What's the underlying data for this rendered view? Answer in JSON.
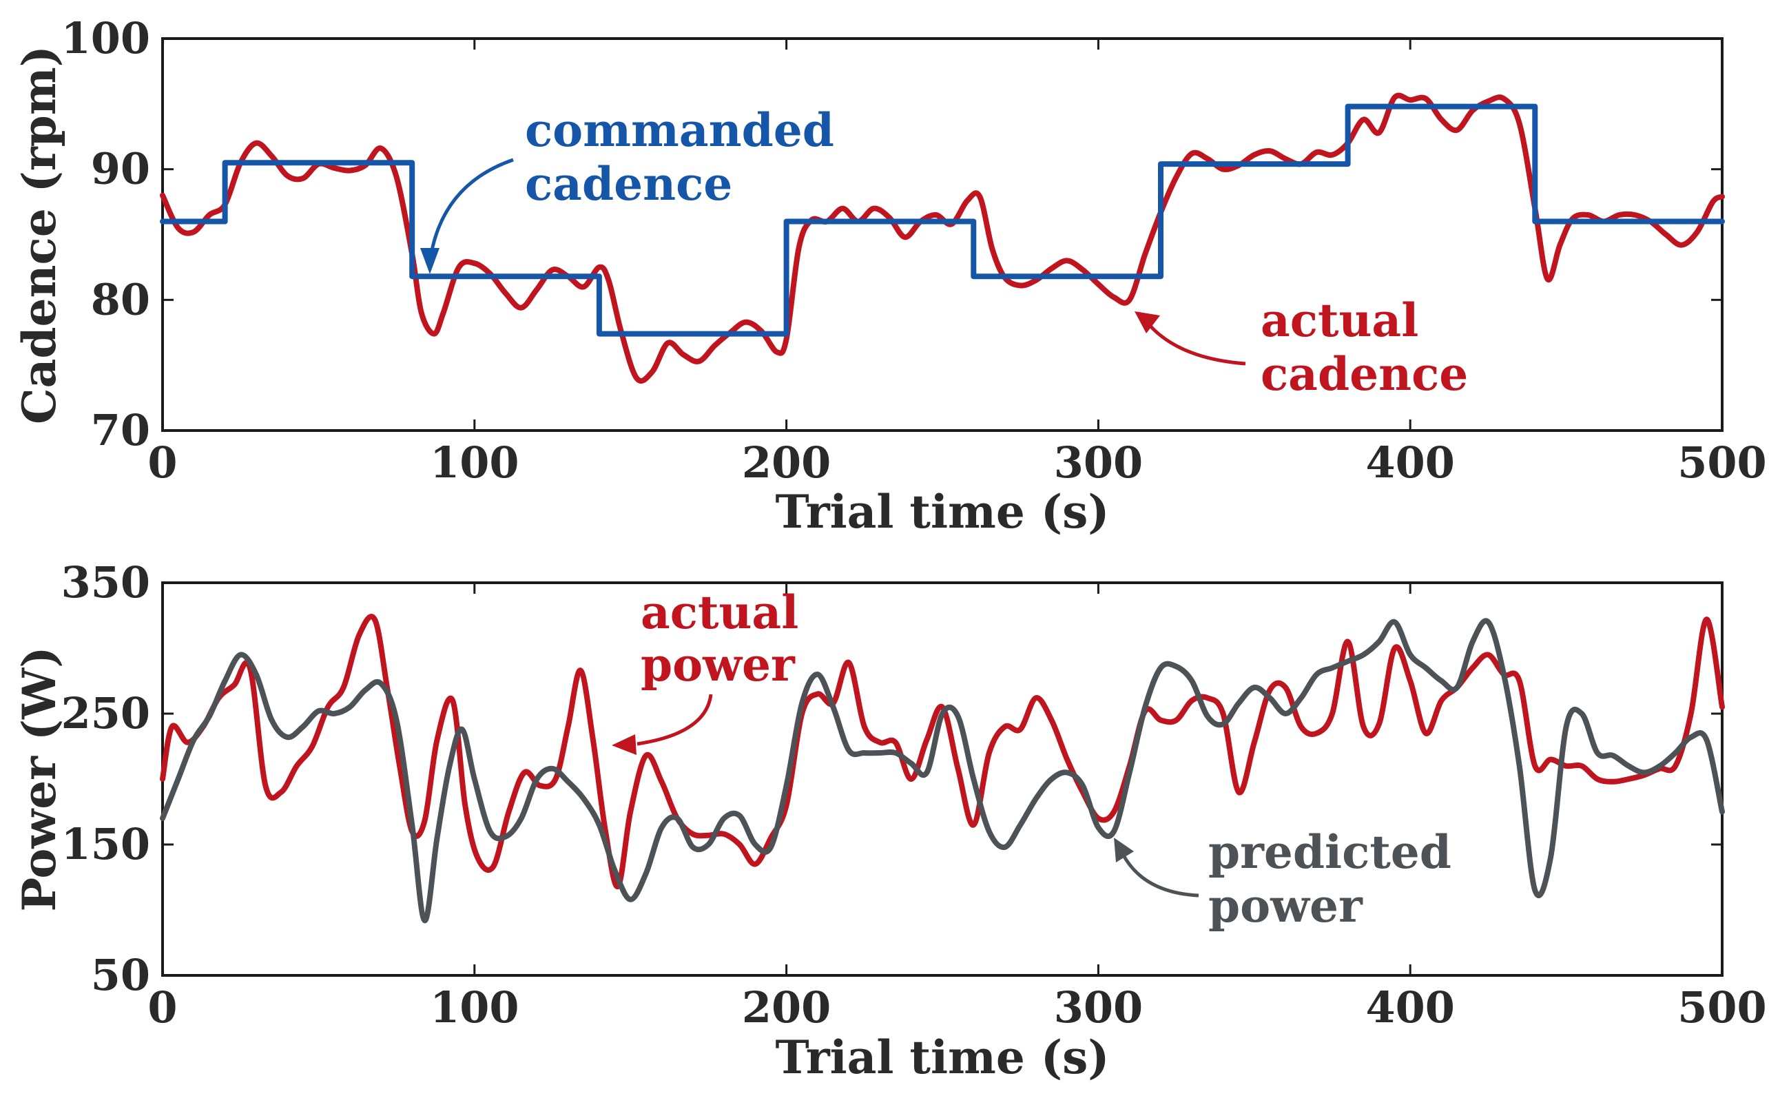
{
  "colors": {
    "commanded": "#1656a8",
    "actual": "#c0141e",
    "predicted": "#4d5257"
  },
  "chart_data": [
    {
      "type": "line",
      "xlabel": "Trial time (s)",
      "ylabel": "Cadence (rpm)",
      "xlim": [
        0,
        500
      ],
      "ylim": [
        70,
        100
      ],
      "xticks": [
        "0",
        "100",
        "200",
        "300",
        "400",
        "500"
      ],
      "yticks": [
        "70",
        "80",
        "90",
        "100"
      ],
      "annotations": [
        {
          "lines": [
            "commanded",
            "cadence"
          ],
          "series": "commanded cadence"
        },
        {
          "lines": [
            "actual",
            "cadence"
          ],
          "series": "actual cadence"
        }
      ],
      "series": [
        {
          "name": "commanded cadence",
          "style": "step",
          "x": [
            0,
            20,
            20,
            80,
            80,
            140,
            140,
            200,
            200,
            260,
            260,
            320,
            320,
            380,
            380,
            440,
            440,
            500
          ],
          "y": [
            86,
            86,
            90.5,
            90.5,
            81.8,
            81.8,
            77.4,
            77.4,
            86,
            86,
            81.8,
            81.8,
            90.4,
            90.4,
            94.8,
            94.8,
            86,
            86
          ]
        },
        {
          "name": "actual cadence",
          "x": [
            0,
            5,
            10,
            15,
            20,
            25,
            30,
            35,
            40,
            45,
            50,
            55,
            60,
            65,
            70,
            75,
            80,
            83,
            87,
            90,
            95,
            100,
            105,
            110,
            115,
            120,
            125,
            130,
            135,
            140,
            143,
            147,
            152,
            157,
            162,
            167,
            172,
            177,
            182,
            187,
            192,
            197,
            200,
            204,
            208,
            213,
            218,
            223,
            228,
            233,
            238,
            243,
            248,
            253,
            258,
            262,
            266,
            270,
            275,
            280,
            285,
            290,
            295,
            300,
            305,
            310,
            315,
            320,
            325,
            330,
            335,
            340,
            345,
            350,
            355,
            360,
            365,
            370,
            375,
            380,
            385,
            390,
            395,
            400,
            405,
            410,
            415,
            420,
            425,
            430,
            435,
            440,
            444,
            448,
            452,
            457,
            462,
            467,
            472,
            477,
            482,
            487,
            492,
            497,
            500
          ],
          "y": [
            88,
            85.5,
            85.2,
            86.5,
            87.3,
            90.5,
            92,
            91,
            89.5,
            89.3,
            90.4,
            90.1,
            89.9,
            90.3,
            91.6,
            89.4,
            83.5,
            79,
            77.4,
            79,
            82.5,
            82.8,
            82,
            80.5,
            79.4,
            80.8,
            82.3,
            81.8,
            81,
            82.5,
            81.5,
            77.6,
            74,
            74.5,
            76.7,
            75.8,
            75.3,
            76.5,
            77.5,
            78.3,
            77.6,
            76,
            77,
            84,
            86.1,
            86,
            87,
            86,
            87,
            86.3,
            84.8,
            86,
            86.5,
            85.8,
            87.6,
            87.9,
            83.9,
            81.7,
            81.1,
            81.5,
            82.4,
            83,
            82.3,
            81.2,
            80.2,
            80,
            83.5,
            86.7,
            89.4,
            91.2,
            90.8,
            90,
            90.3,
            91.1,
            91.4,
            90.8,
            90.4,
            91.3,
            91.1,
            92,
            93.8,
            92.8,
            95.5,
            95.3,
            95.4,
            93.8,
            93,
            94.5,
            95.2,
            95.4,
            93.5,
            87,
            81.6,
            84.2,
            86.2,
            86.5,
            86,
            86.5,
            86.5,
            86,
            85,
            84.2,
            85.2,
            87.5,
            87.9
          ]
        }
      ]
    },
    {
      "type": "line",
      "xlabel": "Trial time (s)",
      "ylabel": "Power (W)",
      "xlim": [
        0,
        500
      ],
      "ylim": [
        50,
        350
      ],
      "xticks": [
        "0",
        "100",
        "200",
        "300",
        "400",
        "500"
      ],
      "yticks": [
        "50",
        "150",
        "250",
        "350"
      ],
      "annotations": [
        {
          "lines": [
            "actual",
            "power"
          ],
          "series": "actual power"
        },
        {
          "lines": [
            "predicted",
            "power"
          ],
          "series": "predicted power"
        }
      ],
      "series": [
        {
          "name": "actual power",
          "x": [
            0,
            3,
            8,
            13,
            18,
            23,
            28,
            33,
            38,
            43,
            48,
            53,
            58,
            63,
            68,
            72,
            76,
            80,
            84,
            88,
            93,
            97,
            101,
            106,
            111,
            116,
            121,
            126,
            130,
            134,
            138,
            142,
            146,
            150,
            155,
            160,
            165,
            170,
            175,
            180,
            185,
            190,
            195,
            200,
            205,
            210,
            215,
            220,
            225,
            230,
            235,
            240,
            245,
            250,
            255,
            260,
            265,
            270,
            275,
            280,
            285,
            290,
            295,
            300,
            305,
            310,
            315,
            320,
            325,
            330,
            335,
            340,
            345,
            350,
            355,
            360,
            365,
            370,
            375,
            380,
            385,
            390,
            395,
            400,
            405,
            410,
            415,
            420,
            425,
            430,
            435,
            440,
            445,
            450,
            455,
            460,
            465,
            470,
            475,
            480,
            485,
            490,
            495,
            500
          ],
          "y": [
            200,
            240,
            228,
            240,
            262,
            272,
            285,
            195,
            190,
            210,
            225,
            255,
            270,
            310,
            322,
            270,
            210,
            160,
            168,
            230,
            260,
            180,
            140,
            133,
            175,
            205,
            195,
            200,
            240,
            283,
            230,
            160,
            118,
            175,
            218,
            198,
            170,
            158,
            157,
            158,
            150,
            135,
            155,
            180,
            250,
            265,
            258,
            289,
            240,
            228,
            228,
            200,
            230,
            255,
            208,
            165,
            220,
            240,
            238,
            262,
            245,
            215,
            190,
            170,
            175,
            210,
            252,
            245,
            245,
            260,
            262,
            250,
            190,
            228,
            268,
            270,
            240,
            235,
            250,
            305,
            240,
            242,
            300,
            275,
            235,
            260,
            270,
            285,
            295,
            280,
            275,
            210,
            215,
            210,
            210,
            200,
            198,
            200,
            203,
            208,
            210,
            250,
            322,
            255
          ]
        },
        {
          "name": "predicted power",
          "x": [
            0,
            5,
            10,
            15,
            20,
            25,
            30,
            35,
            40,
            45,
            50,
            55,
            60,
            65,
            70,
            75,
            80,
            84,
            88,
            92,
            96,
            100,
            105,
            110,
            115,
            120,
            125,
            130,
            135,
            140,
            145,
            150,
            155,
            160,
            165,
            170,
            175,
            180,
            185,
            190,
            195,
            200,
            205,
            210,
            215,
            220,
            225,
            230,
            235,
            240,
            245,
            250,
            255,
            260,
            265,
            270,
            275,
            280,
            285,
            290,
            295,
            300,
            305,
            310,
            315,
            320,
            325,
            330,
            335,
            340,
            345,
            350,
            355,
            360,
            365,
            370,
            375,
            380,
            385,
            390,
            395,
            400,
            405,
            410,
            415,
            420,
            425,
            430,
            435,
            440,
            445,
            450,
            455,
            460,
            465,
            470,
            475,
            480,
            485,
            490,
            495,
            500
          ],
          "y": [
            170,
            200,
            230,
            248,
            275,
            295,
            280,
            245,
            232,
            240,
            252,
            250,
            255,
            268,
            273,
            245,
            165,
            92,
            155,
            210,
            238,
            200,
            160,
            156,
            170,
            200,
            208,
            198,
            185,
            165,
            130,
            108,
            128,
            163,
            170,
            148,
            150,
            170,
            172,
            150,
            148,
            195,
            258,
            280,
            255,
            222,
            220,
            220,
            220,
            212,
            205,
            250,
            248,
            200,
            160,
            148,
            165,
            185,
            200,
            205,
            195,
            163,
            160,
            205,
            255,
            285,
            286,
            275,
            248,
            242,
            258,
            270,
            262,
            250,
            262,
            280,
            285,
            290,
            295,
            305,
            320,
            295,
            285,
            275,
            270,
            305,
            320,
            280,
            210,
            115,
            140,
            240,
            250,
            220,
            218,
            210,
            205,
            210,
            220,
            232,
            230,
            175
          ]
        }
      ]
    }
  ]
}
